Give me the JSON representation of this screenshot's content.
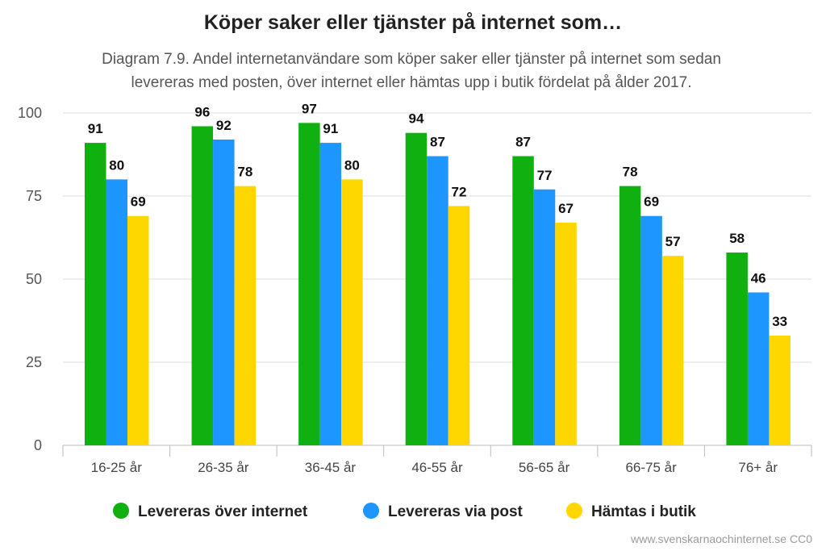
{
  "chart_data": {
    "type": "bar",
    "title": "Köper saker eller tjänster på internet som…",
    "subtitle_lines": [
      "Diagram 7.9. Andel internetanvändare som köper saker eller tjänster på internet som sedan",
      "levereras med posten, över internet eller hämtas upp i butik fördelat på ålder 2017."
    ],
    "categories": [
      "16-25 år",
      "26-35 år",
      "36-45 år",
      "46-55 år",
      "56-65 år",
      "66-75 år",
      "76+ år"
    ],
    "series": [
      {
        "name": "Levereras över internet",
        "color": "#10b010",
        "values": [
          91,
          96,
          97,
          94,
          87,
          78,
          58
        ]
      },
      {
        "name": "Levereras via post",
        "color": "#1e96ff",
        "values": [
          80,
          92,
          91,
          87,
          77,
          69,
          46
        ]
      },
      {
        "name": "Hämtas i butik",
        "color": "#ffd700",
        "values": [
          69,
          78,
          80,
          72,
          67,
          57,
          33
        ]
      }
    ],
    "yticks": [
      0,
      25,
      50,
      75,
      100
    ],
    "ylim": [
      0,
      100
    ],
    "grid": true,
    "legend_position": "bottom",
    "credit": "www.svenskarnaochinternet.se CC0"
  }
}
